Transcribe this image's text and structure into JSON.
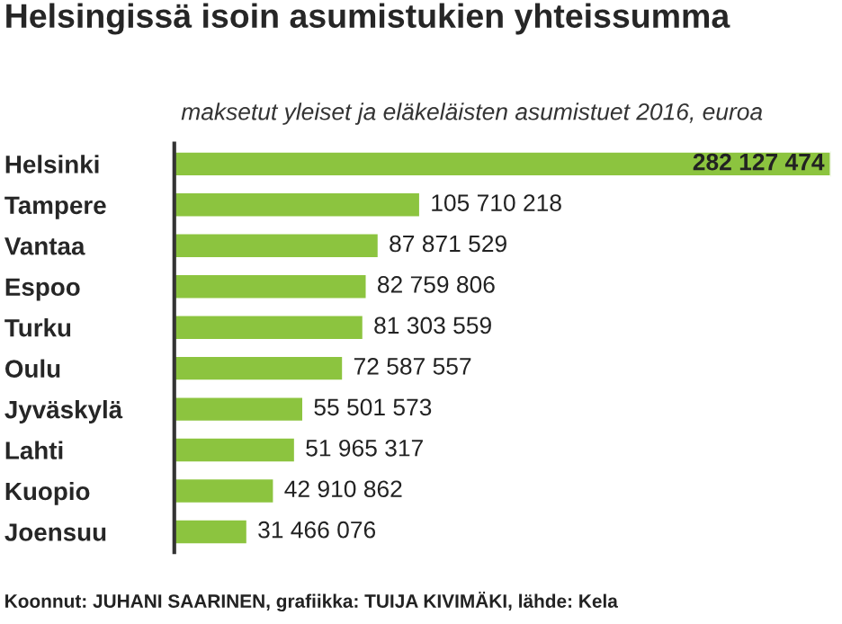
{
  "chart_data": {
    "type": "bar",
    "orientation": "horizontal",
    "title": "Helsingissä isoin asumistukien yhteissumma",
    "subtitle": "maksetut yleiset ja eläkeläisten asumistuet 2016, euroa",
    "categories": [
      "Helsinki",
      "Tampere",
      "Vantaa",
      "Espoo",
      "Turku",
      "Oulu",
      "Jyväskylä",
      "Lahti",
      "Kuopio",
      "Joensuu"
    ],
    "values": [
      282127474,
      105710218,
      87871529,
      82759806,
      81303559,
      72587557,
      55501573,
      51965317,
      42910862,
      31466076
    ],
    "color": "#8cc43f",
    "data_labels": true,
    "grid": false,
    "legend": false,
    "tick_labels": "y",
    "annotations": [
      "Koonnut: JUHANI SAARINEN, grafiikka: TUIJA KIVIMÄKI, lähde: Kela"
    ]
  }
}
